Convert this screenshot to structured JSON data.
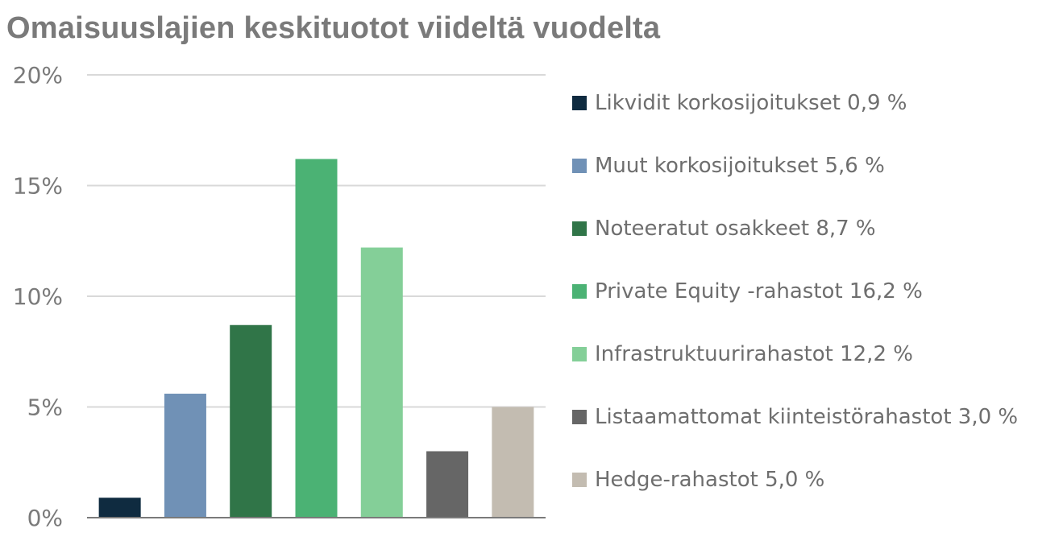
{
  "title": "Omaisuuslajien keskituotot viideltä vuodelta",
  "chart_data": {
    "type": "bar",
    "title": "Omaisuuslajien keskituotot viideltä vuodelta",
    "categories": [
      "Likvidit korkosijoitukset 0,9 %",
      "Muut korkosijoitukset 5,6 %",
      "Noteeratut osakkeet 8,7 %",
      "Private Equity -rahastot 16,2 %",
      "Infrastruktuurirahastot 12,2 %",
      "Listaamattomat kiinteistörahastot 3,0 %",
      "Hedge-rahastot 5,0 %"
    ],
    "values": [
      0.9,
      5.6,
      8.7,
      16.2,
      12.2,
      3.0,
      5.0
    ],
    "colors": [
      "#0f2b40",
      "#7091b6",
      "#307548",
      "#4bb274",
      "#84cf98",
      "#666666",
      "#c3bcb1"
    ],
    "ylim": [
      0,
      20
    ],
    "yticks": [
      "0%",
      "5%",
      "10%",
      "15%",
      "20%"
    ],
    "ytick_values": [
      0,
      5,
      10,
      15,
      20
    ],
    "xlabel": "",
    "ylabel": "",
    "grid": true,
    "legend_position": "right"
  }
}
